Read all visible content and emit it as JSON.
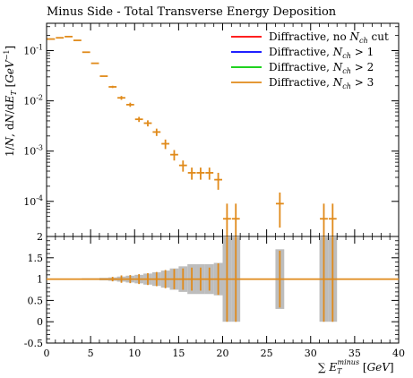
{
  "chart_data": {
    "type": "scatter",
    "title": "Minus Side - Total Transverse Energy Deposition",
    "xlabel": "∑ E_T^minus [GeV]",
    "ylabel": "1/N, dN/dE_T [GeV^-1]",
    "xlim": [
      0,
      40
    ],
    "main_ylim_log": [
      2e-05,
      0.35
    ],
    "ratio_ylim": [
      -0.5,
      2
    ],
    "x_ticks": [
      0,
      5,
      10,
      15,
      20,
      25,
      30,
      35,
      40
    ],
    "y_ticks_main": [
      {
        "label": "10^-1",
        "value": 0.1
      },
      {
        "label": "10^-2",
        "value": 0.01
      },
      {
        "label": "10^-3",
        "value": 0.001
      },
      {
        "label": "10^-4",
        "value": 0.0001
      }
    ],
    "y_ticks_ratio": [
      "-0.5",
      "0",
      "0.5",
      "1",
      "1.5",
      "2"
    ],
    "legend_position": "top-right",
    "series": [
      {
        "name": "Diffractive, no N_ch cut",
        "color": "#ff0000"
      },
      {
        "name": "Diffractive, N_ch > 1",
        "color": "#0000ff"
      },
      {
        "name": "Diffractive, N_ch > 2",
        "color": "#00cc00"
      },
      {
        "name": "Diffractive, N_ch > 3",
        "color": "#e08a1a"
      }
    ],
    "points": [
      {
        "x": 0.5,
        "y": 0.17,
        "yerr": 0
      },
      {
        "x": 1.5,
        "y": 0.18,
        "yerr": 0
      },
      {
        "x": 2.5,
        "y": 0.19,
        "yerr": 0
      },
      {
        "x": 3.5,
        "y": 0.16,
        "yerr": 0
      },
      {
        "x": 4.5,
        "y": 0.093,
        "yerr": 0
      },
      {
        "x": 5.5,
        "y": 0.056,
        "yerr": 0
      },
      {
        "x": 6.5,
        "y": 0.031,
        "yerr": 0
      },
      {
        "x": 7.5,
        "y": 0.019,
        "yerr": 0.001
      },
      {
        "x": 8.5,
        "y": 0.0115,
        "yerr": 0.001
      },
      {
        "x": 9.5,
        "y": 0.0084,
        "yerr": 0.0008
      },
      {
        "x": 10.5,
        "y": 0.0043,
        "yerr": 0.0005
      },
      {
        "x": 11.5,
        "y": 0.0036,
        "yerr": 0.0005
      },
      {
        "x": 12.5,
        "y": 0.0024,
        "yerr": 0.0004
      },
      {
        "x": 13.5,
        "y": 0.0014,
        "yerr": 0.0003
      },
      {
        "x": 14.5,
        "y": 0.00085,
        "yerr": 0.0002
      },
      {
        "x": 15.5,
        "y": 0.00052,
        "yerr": 0.00013
      },
      {
        "x": 16.5,
        "y": 0.00037,
        "yerr": 0.0001
      },
      {
        "x": 17.5,
        "y": 0.00037,
        "yerr": 0.0001
      },
      {
        "x": 18.5,
        "y": 0.00037,
        "yerr": 0.0001
      },
      {
        "x": 19.5,
        "y": 0.00027,
        "yerr": 0.0001
      },
      {
        "x": 20.5,
        "y": 4.5e-05,
        "yerr": 4.5e-05
      },
      {
        "x": 21.5,
        "y": 4.5e-05,
        "yerr": 4.5e-05
      },
      {
        "x": 26.5,
        "y": 9e-05,
        "yerr": 6e-05
      },
      {
        "x": 31.5,
        "y": 4.5e-05,
        "yerr": 4.5e-05
      },
      {
        "x": 32.5,
        "y": 4.5e-05,
        "yerr": 4.5e-05
      }
    ],
    "ratio_band": [
      {
        "x": 4.5,
        "err": 0.02
      },
      {
        "x": 5.5,
        "err": 0.02
      },
      {
        "x": 6.5,
        "err": 0.03
      },
      {
        "x": 7.5,
        "err": 0.04
      },
      {
        "x": 8.5,
        "err": 0.06
      },
      {
        "x": 9.5,
        "err": 0.08
      },
      {
        "x": 10.5,
        "err": 0.1
      },
      {
        "x": 11.5,
        "err": 0.13
      },
      {
        "x": 12.5,
        "err": 0.16
      },
      {
        "x": 13.5,
        "err": 0.2
      },
      {
        "x": 14.5,
        "err": 0.25
      },
      {
        "x": 15.5,
        "err": 0.3
      },
      {
        "x": 16.5,
        "err": 0.35
      },
      {
        "x": 17.5,
        "err": 0.35
      },
      {
        "x": 18.5,
        "err": 0.35
      },
      {
        "x": 19.5,
        "err": 0.38
      },
      {
        "x": 20.5,
        "err": 1.0
      },
      {
        "x": 21.5,
        "err": 1.0
      },
      {
        "x": 26.5,
        "err": 0.7
      },
      {
        "x": 31.5,
        "err": 1.0
      },
      {
        "x": 32.5,
        "err": 1.0
      }
    ]
  }
}
